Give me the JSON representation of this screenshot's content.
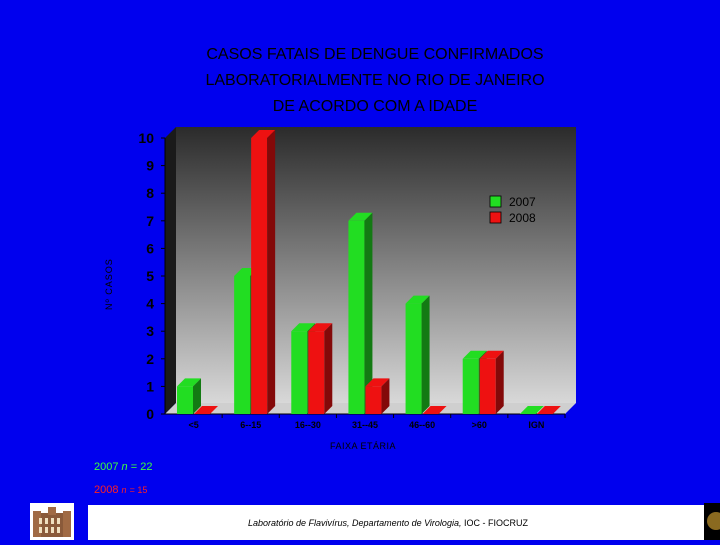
{
  "title_lines": [
    "CASOS FATAIS DE DENGUE CONFIRMADOS",
    "LABORATORIALMENTE NO RIO DE JANEIRO",
    "DE ACORDO  COM A IDADE"
  ],
  "n_2007_label": "2007",
  "n_2007_n": "n",
  "n_2007_value": "= 22",
  "n_2008_label": "2008",
  "n_2008_n": "n",
  "n_2008_value": "= 15",
  "footer": {
    "lab": "Laboratório de Flavivírus, Departamento de Virologia,",
    "institution": " IOC - FIOCRUZ"
  },
  "chart_data": {
    "type": "bar",
    "title": "CASOS FATAIS DE DENGUE CONFIRMADOS LABORATORIALMENTE NO RIO DE JANEIRO DE ACORDO  COM A IDADE",
    "xlabel": "FAIXA ETÁRIA",
    "ylabel": "Nº CASOS",
    "ylim": [
      0,
      10
    ],
    "yticks": [
      0,
      1,
      2,
      3,
      4,
      5,
      6,
      7,
      8,
      9,
      10
    ],
    "categories": [
      "<5",
      "6--15",
      "16--30",
      "31--45",
      "46--60",
      ">60",
      "IGN"
    ],
    "series": [
      {
        "name": "2007",
        "color": "#22dd22",
        "values": [
          1,
          5,
          3,
          7,
          4,
          2,
          0
        ]
      },
      {
        "name": "2008",
        "color": "#ee1111",
        "values": [
          0,
          10,
          3,
          1,
          0,
          2,
          0
        ]
      }
    ],
    "legend": "top-right",
    "grid": false
  }
}
